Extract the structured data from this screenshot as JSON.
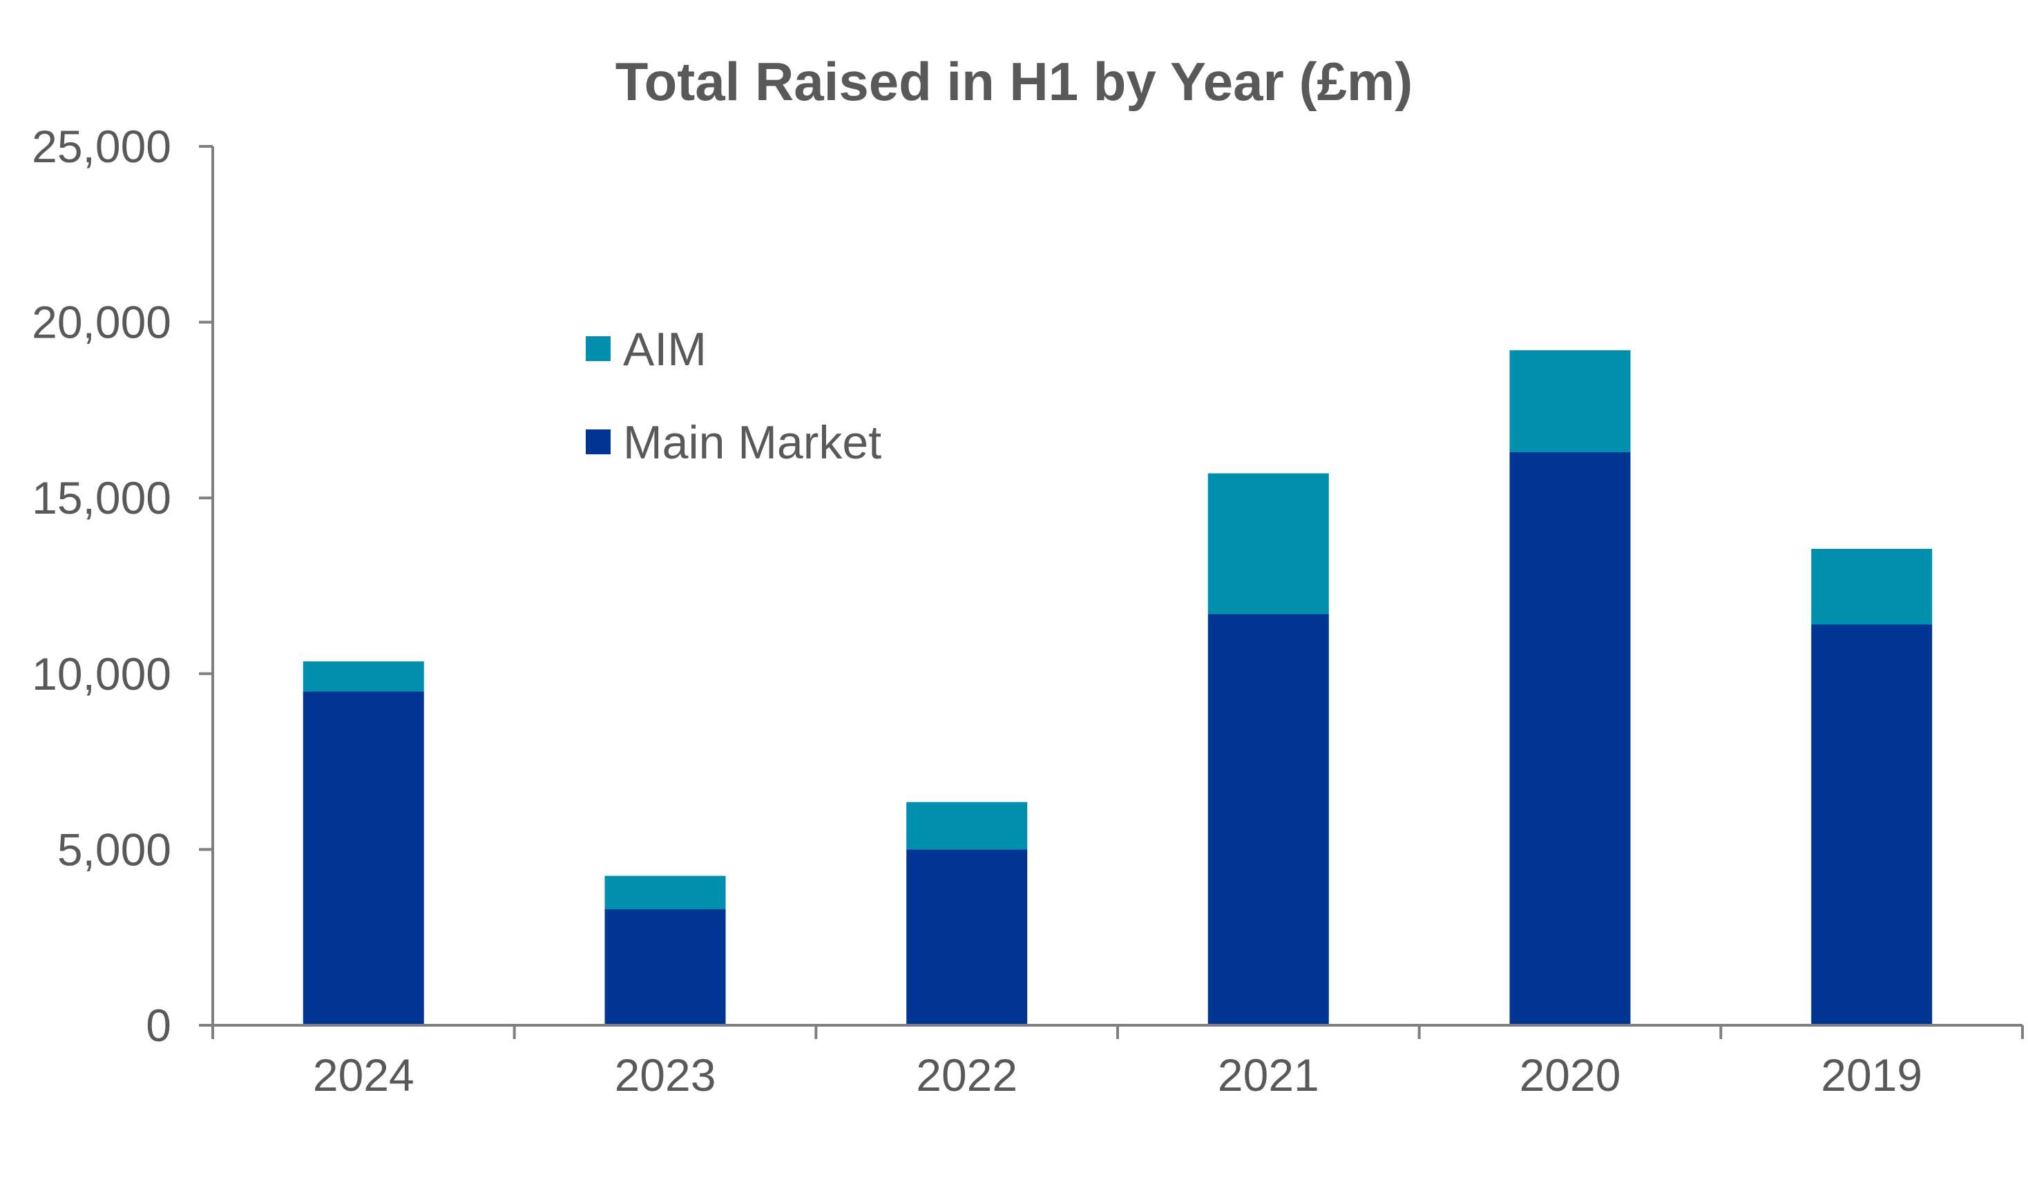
{
  "chart_data": {
    "type": "bar",
    "stacked": true,
    "title": "Total Raised in H1 by Year (£m)",
    "xlabel": "",
    "ylabel": "",
    "categories": [
      "2024",
      "2023",
      "2022",
      "2021",
      "2020",
      "2019"
    ],
    "series": [
      {
        "name": "Main Market",
        "color": "#003594",
        "values": [
          9500,
          3300,
          5000,
          11700,
          16300,
          11400
        ]
      },
      {
        "name": "AIM",
        "color": "#008FAC",
        "values": [
          850,
          950,
          1350,
          4000,
          2900,
          2150
        ]
      }
    ],
    "ylim": [
      0,
      25000
    ],
    "yticks": [
      "0",
      "5,000",
      "10,000",
      "15,000",
      "20,000",
      "25,000"
    ],
    "ytick_values": [
      0,
      5000,
      10000,
      15000,
      20000,
      25000
    ],
    "legend": [
      {
        "label": "AIM",
        "color": "#008FAC"
      },
      {
        "label": "Main Market",
        "color": "#003594"
      }
    ],
    "legend_position": "top-left",
    "grid": false,
    "axis_color": "#7f7f7f"
  }
}
